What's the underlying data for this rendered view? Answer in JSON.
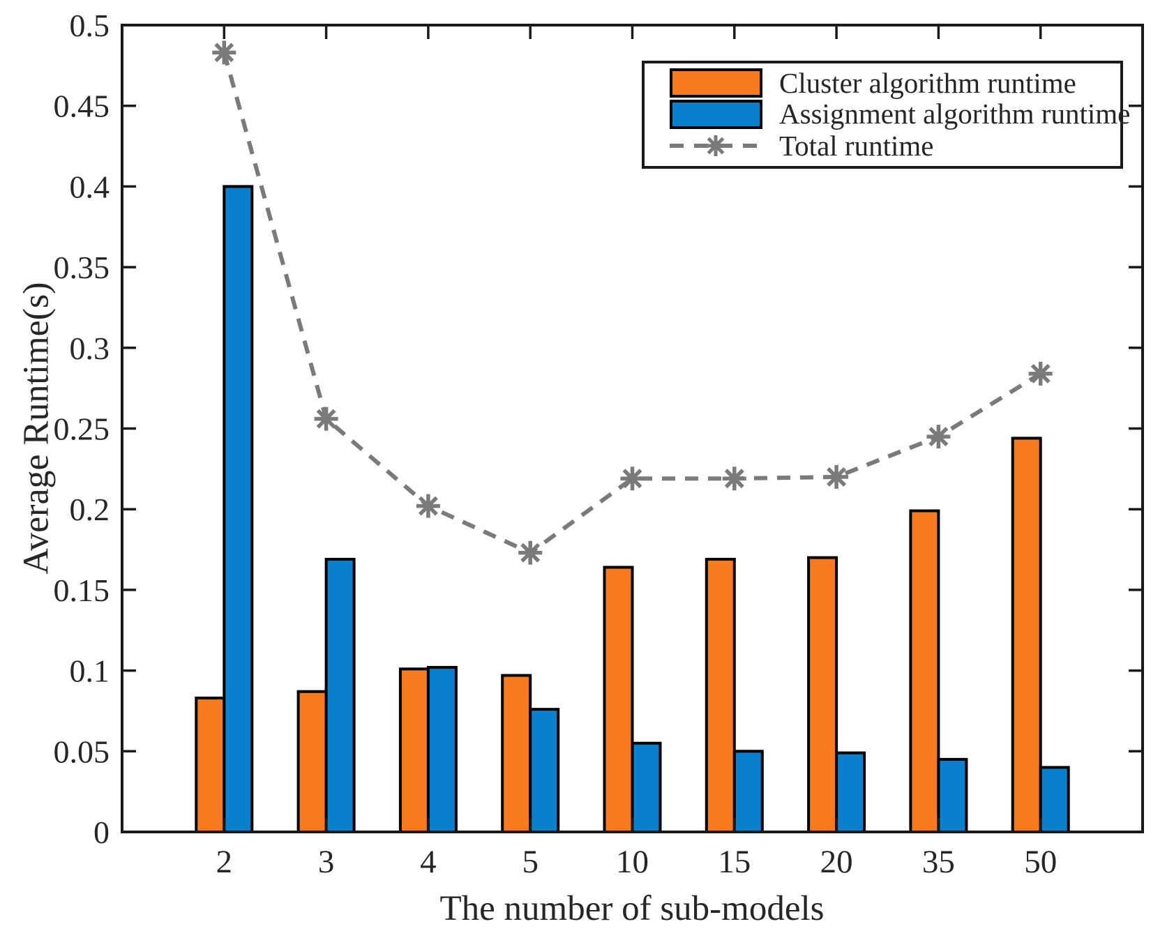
{
  "chart_data": {
    "type": "bar",
    "title": "",
    "xlabel": "The number of sub-models",
    "ylabel": "Average Runtime(s)",
    "categories": [
      "2",
      "3",
      "4",
      "5",
      "10",
      "15",
      "20",
      "35",
      "50"
    ],
    "series": [
      {
        "name": "Cluster algorithm runtime",
        "type": "bar",
        "color": "#F87B20",
        "values": [
          0.083,
          0.087,
          0.101,
          0.097,
          0.164,
          0.169,
          0.17,
          0.199,
          0.244
        ]
      },
      {
        "name": "Assignment algorithm runtime",
        "type": "bar",
        "color": "#0880CD",
        "values": [
          0.4,
          0.169,
          0.102,
          0.076,
          0.055,
          0.05,
          0.049,
          0.045,
          0.04
        ]
      },
      {
        "name": "Total runtime",
        "type": "line",
        "line_style": "dashed",
        "marker": "asterisk",
        "color": "#7A7A7A",
        "values": [
          0.483,
          0.256,
          0.202,
          0.173,
          0.219,
          0.219,
          0.22,
          0.245,
          0.284
        ]
      }
    ],
    "ylim": [
      0,
      0.5
    ],
    "yticks": [
      "0",
      "0.05",
      "0.1",
      "0.15",
      "0.2",
      "0.25",
      "0.3",
      "0.35",
      "0.4",
      "0.45",
      "0.5"
    ],
    "ytick_values": [
      0,
      0.05,
      0.1,
      0.15,
      0.2,
      0.25,
      0.3,
      0.35,
      0.4,
      0.45,
      0.5
    ],
    "grid": false,
    "legend_position": "top-right",
    "colors": {
      "axis": "#1a1a1a",
      "tick_text": "#262626",
      "bar_edge": "#000000",
      "background": "#ffffff"
    }
  }
}
